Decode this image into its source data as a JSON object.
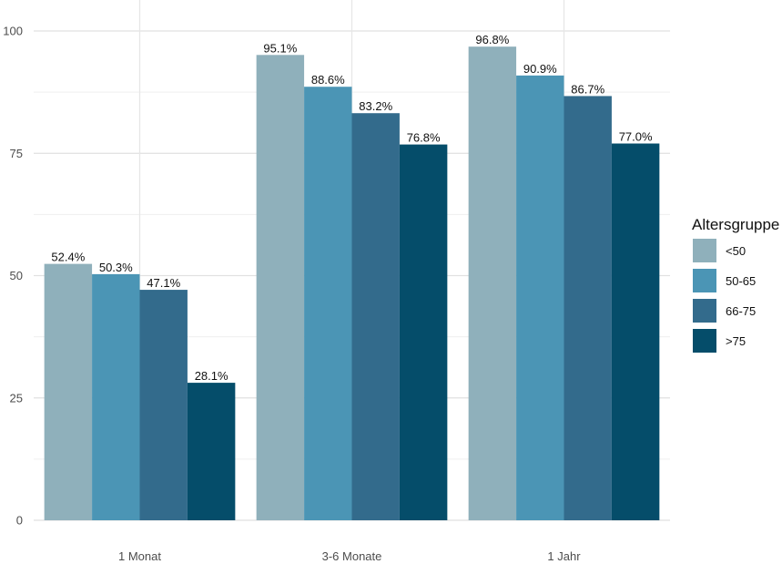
{
  "chart_data": {
    "type": "bar",
    "categories": [
      "1 Monat",
      "3-6 Monate",
      "1 Jahr"
    ],
    "series": [
      {
        "name": "<50",
        "color": "#8fb0bb",
        "values": [
          52.4,
          95.1,
          96.8
        ],
        "labels": [
          "52.4%",
          "95.1%",
          "96.8%"
        ]
      },
      {
        "name": "50-65",
        "color": "#4b95b5",
        "values": [
          50.3,
          88.6,
          90.9
        ],
        "labels": [
          "50.3%",
          "88.6%",
          "90.9%"
        ]
      },
      {
        "name": "66-75",
        "color": "#336b8c",
        "values": [
          47.1,
          83.2,
          86.7
        ],
        "labels": [
          "47.1%",
          "83.2%",
          "86.7%"
        ]
      },
      {
        "name": ">75",
        "color": "#054d6a",
        "values": [
          28.1,
          76.8,
          77.0
        ],
        "labels": [
          "28.1%",
          "76.8%",
          "77.0%"
        ]
      }
    ],
    "ylim": [
      0,
      100
    ],
    "yticks": [
      0,
      25,
      50,
      75,
      100
    ],
    "grid": true,
    "legend": {
      "title": "Altersgruppe",
      "position": "right"
    },
    "title": "",
    "xlabel": "",
    "ylabel": ""
  }
}
